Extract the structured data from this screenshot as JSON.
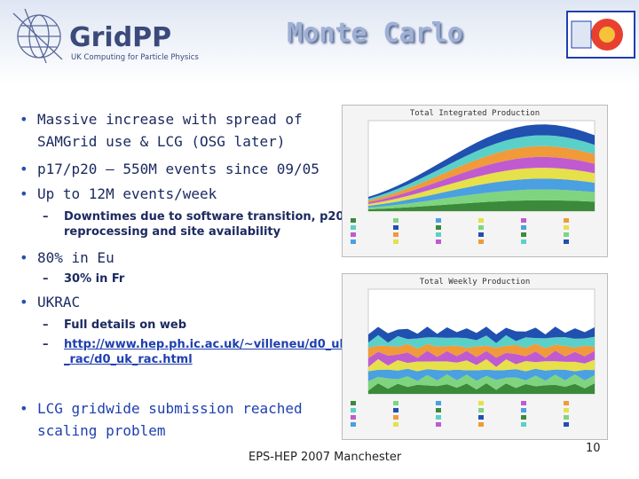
{
  "header": {
    "title": "Monte Carlo",
    "logo_name": "GridPP",
    "logo_subtitle": "UK Computing for Particle Physics"
  },
  "bullets": [
    {
      "level": 1,
      "text": "Massive increase with spread of SAMGrid use & LCG (OSG later)"
    },
    {
      "level": 1,
      "text": "p17/p20 – 550M events since 09/05"
    },
    {
      "level": 1,
      "text": "Up to 12M events/week"
    },
    {
      "level": 2,
      "text": "Downtimes due to software transition, p20 reprocessing and site availability"
    },
    {
      "level": 1,
      "text": "80% in Eu"
    },
    {
      "level": 2,
      "text": "30% in Fr"
    },
    {
      "level": 1,
      "text": "UKRAC"
    },
    {
      "level": 2,
      "text": "Full details on web"
    },
    {
      "level": 2,
      "text": "http://www.hep.ph.ic.ac.uk/~villeneu/d0_uk_rac/d0_uk_rac.html"
    },
    {
      "level": 1,
      "text": "LCG gridwide submission reached scaling problem"
    }
  ],
  "charts": [
    {
      "title": "Total Integrated Production"
    },
    {
      "title": "Total Weekly Production"
    }
  ],
  "footer": "EPS-HEP 2007 Manchester",
  "page_number": "10"
}
